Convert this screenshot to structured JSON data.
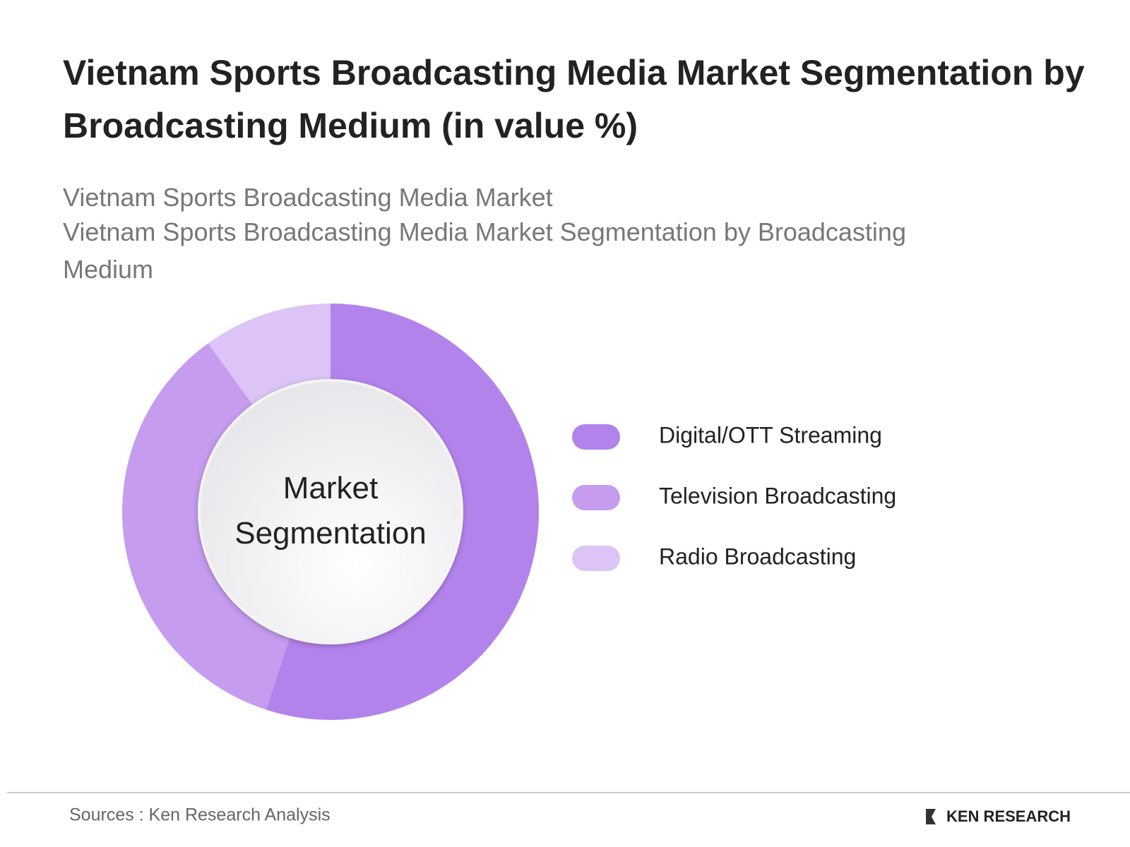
{
  "chart_data": {
    "type": "donut",
    "title": "Vietnam Sports Broadcasting Media Market Segmentation by Broadcasting Medium (in value %)",
    "subtitle": [
      "Vietnam Sports Broadcasting Media Market",
      "Vietnam Sports Broadcasting Media Market Segmentation by Broadcasting Medium"
    ],
    "center_label": "Market Segmentation",
    "categories": [
      "Digital/OTT Streaming",
      "Television Broadcasting",
      "Radio Broadcasting"
    ],
    "values": [
      55,
      35,
      10
    ],
    "colors": [
      "#b383ec",
      "#c59cee",
      "#dcc4f6"
    ]
  },
  "footer": {
    "source": "Sources : Ken Research Analysis",
    "logo": "KEN RESEARCH"
  }
}
